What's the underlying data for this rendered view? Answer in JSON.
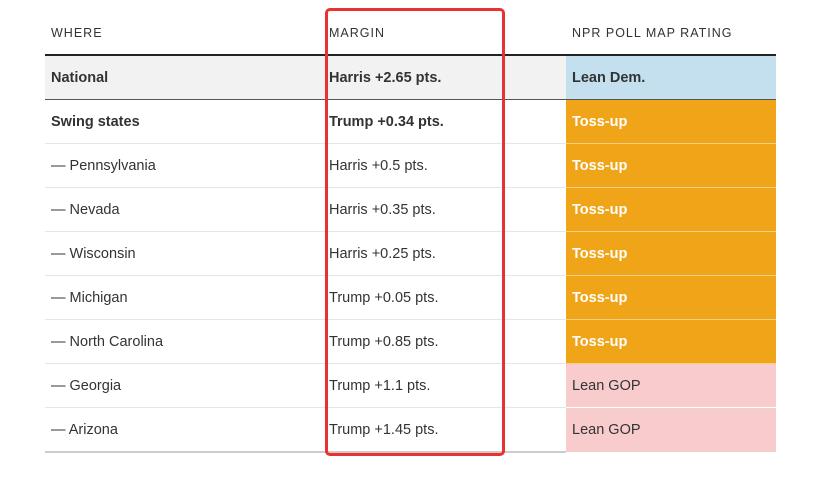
{
  "table": {
    "headers": {
      "where": "WHERE",
      "margin": "MARGIN",
      "rating": "NPR POLL MAP RATING"
    },
    "rows": [
      {
        "where": "National",
        "margin": "Harris +2.65 pts.",
        "rating": "Lean Dem."
      },
      {
        "where": "Swing states",
        "margin": "Trump +0.34 pts.",
        "rating": "Toss-up"
      },
      {
        "where": "— Pennsylvania",
        "margin": "Harris +0.5 pts.",
        "rating": "Toss-up"
      },
      {
        "where": "— Nevada",
        "margin": "Harris +0.35 pts.",
        "rating": "Toss-up"
      },
      {
        "where": "— Wisconsin",
        "margin": "Harris +0.25 pts.",
        "rating": "Toss-up"
      },
      {
        "where": "— Michigan",
        "margin": "Trump +0.05 pts.",
        "rating": "Toss-up"
      },
      {
        "where": "— North Carolina",
        "margin": "Trump +0.85 pts.",
        "rating": "Toss-up"
      },
      {
        "where": "— Georgia",
        "margin": "Trump +1.1 pts.",
        "rating": "Lean GOP"
      },
      {
        "where": "— Arizona",
        "margin": "Trump +1.45 pts.",
        "rating": "Lean GOP"
      }
    ]
  },
  "colors": {
    "lean_dem": "#c4e0ef",
    "toss_up": "#f0a518",
    "lean_gop": "#f8cbcd",
    "highlight": "#e83232"
  }
}
